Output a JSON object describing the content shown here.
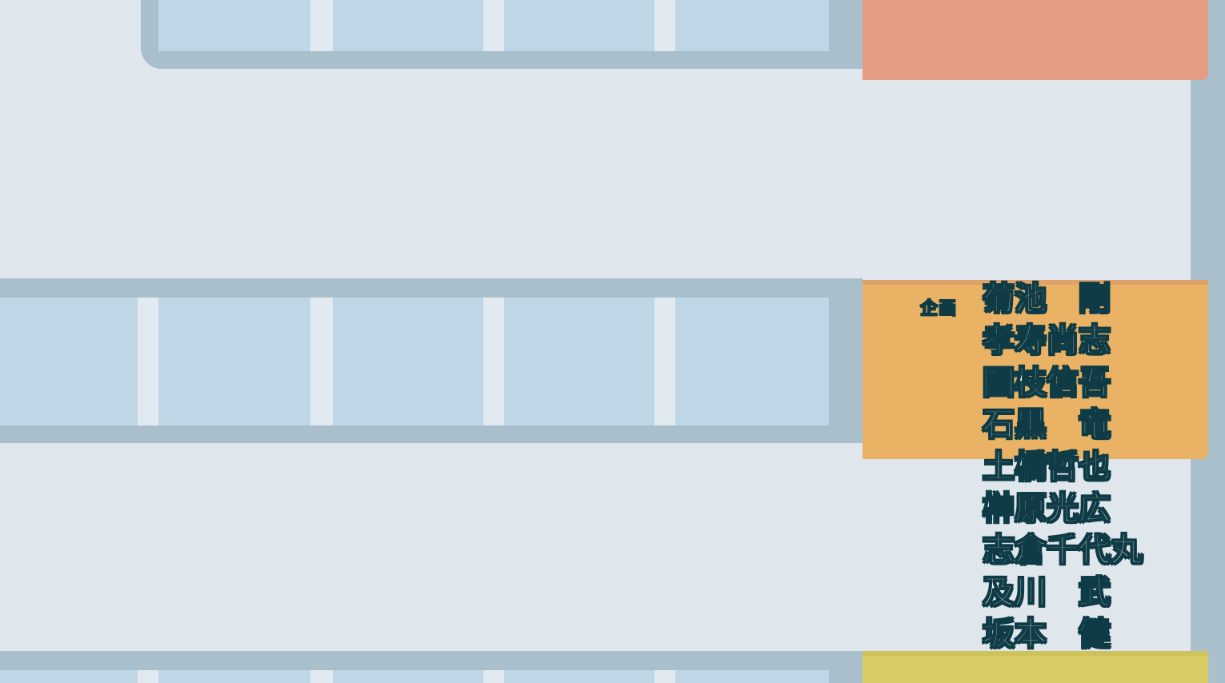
{
  "credits": {
    "role": "企画",
    "names": [
      "菊池　剛",
      "孝寿尚志",
      "國枝信吾",
      "石黒　竜",
      "土橋哲也",
      "榊原光広",
      "志倉千代丸",
      "及川　武",
      "坂本　健"
    ]
  },
  "colors": {
    "wall": "#dfe6ec",
    "window_frame": "#a9bfcc",
    "window_pane": "#bfd6e6",
    "tab_salmon": "#e49c82",
    "tab_orange": "#e9b264",
    "tab_yellow": "#d7cd64",
    "text_fill": "#ffffff",
    "text_outline": "#0e3b45"
  }
}
